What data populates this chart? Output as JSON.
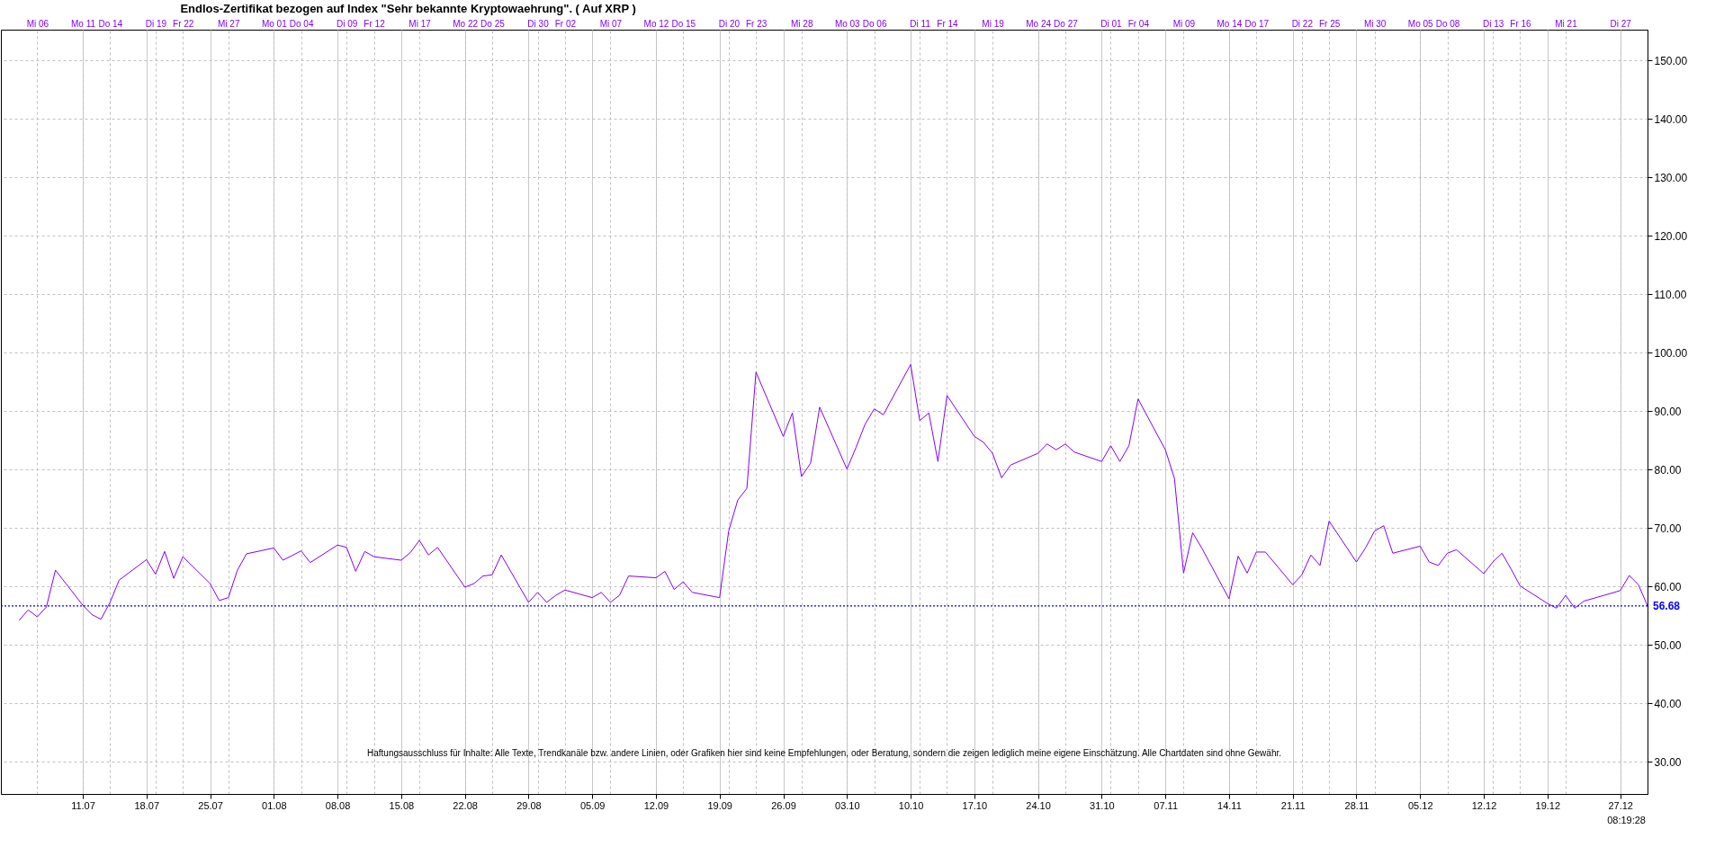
{
  "chart_data": {
    "type": "line",
    "title": "Endlos-Zertifikat bezogen auf Index \"Sehr bekannte Kryptowaehrung\". ( Auf XRP )",
    "x": [
      "--07-04",
      "--07-05",
      "--07-06",
      "--07-07",
      "--07-08",
      "--07-11",
      "--07-12",
      "--07-13",
      "--07-14",
      "--07-15",
      "--07-18",
      "--07-19",
      "--07-20",
      "--07-21",
      "--07-22",
      "--07-25",
      "--07-26",
      "--07-27",
      "--07-28",
      "--07-29",
      "--08-01",
      "--08-02",
      "--08-03",
      "--08-04",
      "--08-05",
      "--08-08",
      "--08-09",
      "--08-10",
      "--08-11",
      "--08-12",
      "--08-15",
      "--08-16",
      "--08-17",
      "--08-18",
      "--08-19",
      "--08-22",
      "--08-23",
      "--08-24",
      "--08-25",
      "--08-26",
      "--08-29",
      "--08-30",
      "--08-31",
      "--09-01",
      "--09-02",
      "--09-05",
      "--09-06",
      "--09-07",
      "--09-08",
      "--09-09",
      "--09-12",
      "--09-13",
      "--09-14",
      "--09-15",
      "--09-16",
      "--09-19",
      "--09-20",
      "--09-21",
      "--09-22",
      "--09-23",
      "--09-26",
      "--09-27",
      "--09-28",
      "--09-29",
      "--09-30",
      "--10-03",
      "--10-04",
      "--10-05",
      "--10-06",
      "--10-07",
      "--10-10",
      "--10-11",
      "--10-12",
      "--10-13",
      "--10-14",
      "--10-17",
      "--10-18",
      "--10-19",
      "--10-20",
      "--10-21",
      "--10-24",
      "--10-25",
      "--10-26",
      "--10-27",
      "--10-28",
      "--10-31",
      "--11-01",
      "--11-02",
      "--11-03",
      "--11-04",
      "--11-07",
      "--11-08",
      "--11-09",
      "--11-10",
      "--11-11",
      "--11-14",
      "--11-15",
      "--11-16",
      "--11-17",
      "--11-18",
      "--11-21",
      "--11-22",
      "--11-23",
      "--11-24",
      "--11-25",
      "--11-28",
      "--11-29",
      "--11-30",
      "--12-01",
      "--12-02",
      "--12-05",
      "--12-06",
      "--12-07",
      "--12-08",
      "--12-09",
      "--12-12",
      "--12-13",
      "--12-14",
      "--12-15",
      "--12-16",
      "--12-19",
      "--12-20",
      "--12-21",
      "--12-22",
      "--12-23",
      "--12-27",
      "--12-28",
      "--12-29",
      "--12-30"
    ],
    "series": [
      {
        "color": "#8000ff",
        "values": [
          54.2,
          56.0,
          54.8,
          56.5,
          62.8,
          56.8,
          55.2,
          54.4,
          57.3,
          61.1,
          64.6,
          62.1,
          66.0,
          61.4,
          65.1,
          60.5,
          57.6,
          58.1,
          62.8,
          65.6,
          66.6,
          64.5,
          65.3,
          66.1,
          64.1,
          67.1,
          66.7,
          62.6,
          66.0,
          65.1,
          64.5,
          65.8,
          67.9,
          65.4,
          66.7,
          59.9,
          60.5,
          61.8,
          62.0,
          65.4,
          57.3,
          59.0,
          57.3,
          58.5,
          59.4,
          58.1,
          59.0,
          57.3,
          58.5,
          61.8,
          61.5,
          62.6,
          59.5,
          60.8,
          59.0,
          58.1,
          69.5,
          74.8,
          76.8,
          96.7,
          85.7,
          89.7,
          78.8,
          81.1,
          90.7,
          80.1,
          83.8,
          87.8,
          90.4,
          89.4,
          98.0,
          88.4,
          89.7,
          81.4,
          92.7,
          85.7,
          84.7,
          82.8,
          78.6,
          80.8,
          82.8,
          84.4,
          83.4,
          84.4,
          83.0,
          81.4,
          84.1,
          81.4,
          84.1,
          92.1,
          83.4,
          78.5,
          62.3,
          69.2,
          66.6,
          57.9,
          65.2,
          62.3,
          65.9,
          65.9,
          60.3,
          62.0,
          65.4,
          63.6,
          71.2,
          64.2,
          66.6,
          69.5,
          70.4,
          65.7,
          66.9,
          64.2,
          63.6,
          65.7,
          66.3,
          62.2,
          64.2,
          65.7,
          63.0,
          60.1,
          57.1,
          56.3,
          58.5,
          56.3,
          57.5,
          59.3,
          61.9,
          60.3,
          56.7
        ]
      }
    ],
    "xlim": [
      "--07-02",
      "--12-30"
    ],
    "xticks": [
      {
        "value": "--07-11",
        "label": "11.07"
      },
      {
        "value": "--07-18",
        "label": "18.07"
      },
      {
        "value": "--07-25",
        "label": "25.07"
      },
      {
        "value": "--08-01",
        "label": "01.08"
      },
      {
        "value": "--08-08",
        "label": "08.08"
      },
      {
        "value": "--08-15",
        "label": "15.08"
      },
      {
        "value": "--08-22",
        "label": "22.08"
      },
      {
        "value": "--08-29",
        "label": "29.08"
      },
      {
        "value": "--09-05",
        "label": "05.09"
      },
      {
        "value": "--09-12",
        "label": "12.09"
      },
      {
        "value": "--09-19",
        "label": "19.09"
      },
      {
        "value": "--09-26",
        "label": "26.09"
      },
      {
        "value": "--10-03",
        "label": "03.10"
      },
      {
        "value": "--10-10",
        "label": "10.10"
      },
      {
        "value": "--10-17",
        "label": "17.10"
      },
      {
        "value": "--10-24",
        "label": "24.10"
      },
      {
        "value": "--10-31",
        "label": "31.10"
      },
      {
        "value": "--11-07",
        "label": "07.11"
      },
      {
        "value": "--11-14",
        "label": "14.11"
      },
      {
        "value": "--11-21",
        "label": "21.11"
      },
      {
        "value": "--11-28",
        "label": "28.11"
      },
      {
        "value": "--12-05",
        "label": "05.12"
      },
      {
        "value": "--12-12",
        "label": "12.12"
      },
      {
        "value": "--12-19",
        "label": "19.12"
      },
      {
        "value": "--12-27",
        "label": "27.12"
      }
    ],
    "x2lim": [
      "--07-02",
      "--12-30"
    ],
    "x2ticks": [
      {
        "value": "--07-06",
        "label": "Mi 06"
      },
      {
        "value": "--07-11",
        "label": "Mo 11"
      },
      {
        "value": "--07-14",
        "label": "Do 14"
      },
      {
        "value": "--07-19",
        "label": "Di 19"
      },
      {
        "value": "--07-22",
        "label": "Fr 22"
      },
      {
        "value": "--07-27",
        "label": "Mi 27"
      },
      {
        "value": "--08-01",
        "label": "Mo 01"
      },
      {
        "value": "--08-04",
        "label": "Do 04"
      },
      {
        "value": "--08-09",
        "label": "Di 09"
      },
      {
        "value": "--08-12",
        "label": "Fr 12"
      },
      {
        "value": "--08-17",
        "label": "Mi 17"
      },
      {
        "value": "--08-22",
        "label": "Mo 22"
      },
      {
        "value": "--08-25",
        "label": "Do 25"
      },
      {
        "value": "--08-30",
        "label": "Di 30"
      },
      {
        "value": "--09-02",
        "label": "Fr 02"
      },
      {
        "value": "--09-07",
        "label": "Mi 07"
      },
      {
        "value": "--09-12",
        "label": "Mo 12"
      },
      {
        "value": "--09-15",
        "label": "Do 15"
      },
      {
        "value": "--09-20",
        "label": "Di 20"
      },
      {
        "value": "--09-23",
        "label": "Fr 23"
      },
      {
        "value": "--09-28",
        "label": "Mi 28"
      },
      {
        "value": "--10-03",
        "label": "Mo 03"
      },
      {
        "value": "--10-06",
        "label": "Do 06"
      },
      {
        "value": "--10-11",
        "label": "Di 11"
      },
      {
        "value": "--10-14",
        "label": "Fr 14"
      },
      {
        "value": "--10-19",
        "label": "Mi 19"
      },
      {
        "value": "--10-24",
        "label": "Mo 24"
      },
      {
        "value": "--10-27",
        "label": "Do 27"
      },
      {
        "value": "--11-01",
        "label": "Di 01"
      },
      {
        "value": "--11-04",
        "label": "Fr 04"
      },
      {
        "value": "--11-09",
        "label": "Mi 09"
      },
      {
        "value": "--11-14",
        "label": "Mo 14"
      },
      {
        "value": "--11-17",
        "label": "Do 17"
      },
      {
        "value": "--11-22",
        "label": "Di 22"
      },
      {
        "value": "--11-25",
        "label": "Fr 25"
      },
      {
        "value": "--11-30",
        "label": "Mi 30"
      },
      {
        "value": "--12-05",
        "label": "Mo 05"
      },
      {
        "value": "--12-08",
        "label": "Do 08"
      },
      {
        "value": "--12-13",
        "label": "Di 13"
      },
      {
        "value": "--12-16",
        "label": "Fr 16"
      },
      {
        "value": "--12-21",
        "label": "Mi 21"
      },
      {
        "value": "--12-27",
        "label": "Di 27"
      }
    ],
    "ylim": [
      24.5,
      155.3
    ],
    "yticks": [
      {
        "value": 30,
        "label": "30.00"
      },
      {
        "value": 40,
        "label": "40.00"
      },
      {
        "value": 50,
        "label": "50.00"
      },
      {
        "value": 60,
        "label": "60.00"
      },
      {
        "value": 70,
        "label": "70.00"
      },
      {
        "value": 80,
        "label": "80.00"
      },
      {
        "value": 90,
        "label": "90.00"
      },
      {
        "value": 100,
        "label": "100.00"
      },
      {
        "value": 110,
        "label": "110.00"
      },
      {
        "value": 120,
        "label": "120.00"
      },
      {
        "value": 130,
        "label": "130.00"
      },
      {
        "value": 140,
        "label": "140.00"
      },
      {
        "value": 150,
        "label": "150.00"
      }
    ],
    "grid": true,
    "ref_lines": [
      {
        "axis": "y",
        "value": 56.68,
        "label": "56.68",
        "color": "#0000ff",
        "line_style": "dotted"
      }
    ],
    "annotations": [
      "Haftungsausschluss für Inhalte: Alle Texte, Trendkanäle bzw. andere Linien, oder Grafiken hier sind keine Empfehlungen, oder Beratung, sondern die zeigen lediglich meine eigene Einschätzung. Alle Chartdaten sind ohne Gewähr.",
      "08:19:28"
    ]
  }
}
